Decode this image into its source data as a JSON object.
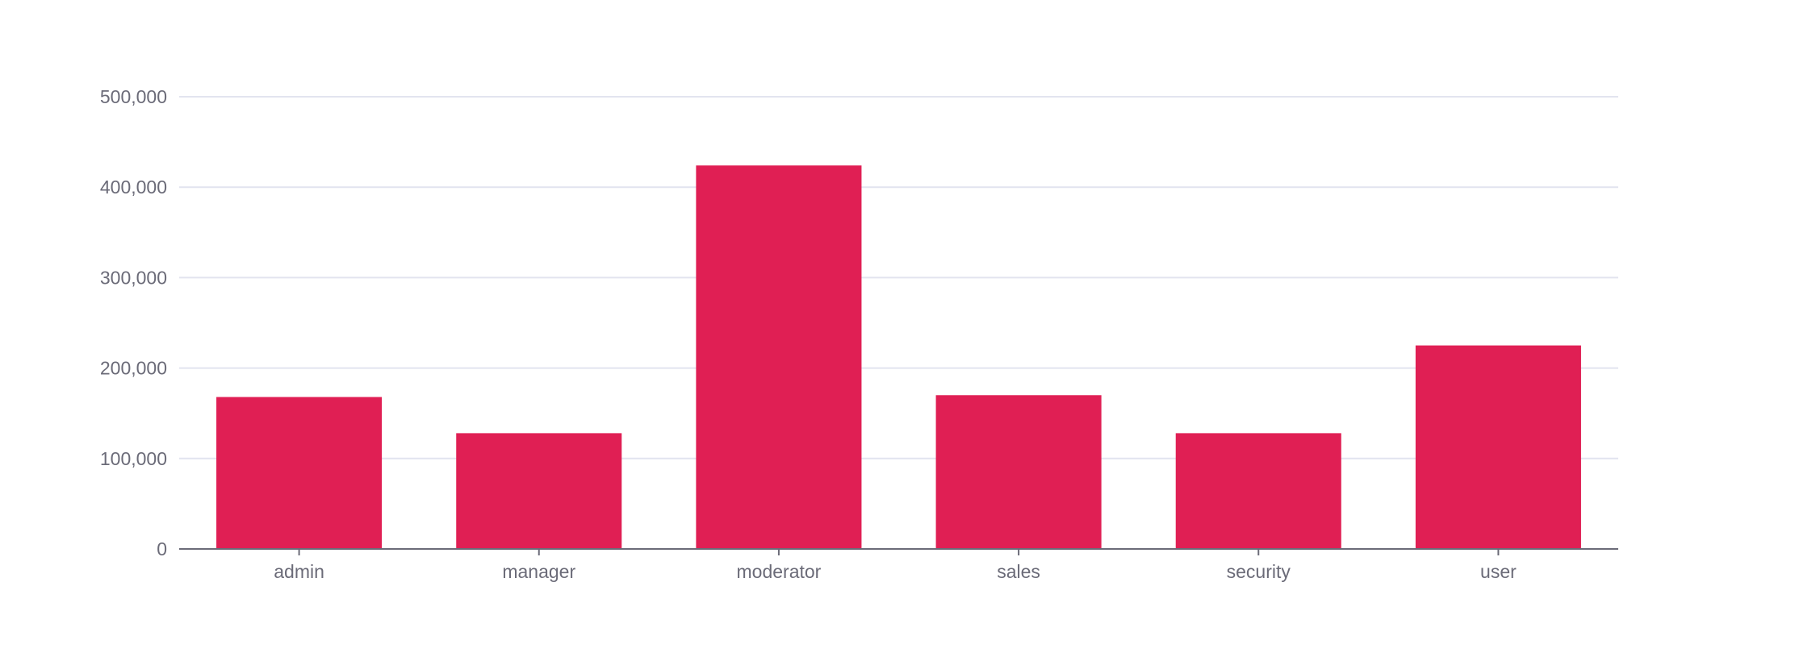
{
  "chart_data": {
    "type": "bar",
    "categories": [
      "admin",
      "manager",
      "moderator",
      "sales",
      "security",
      "user"
    ],
    "values": [
      168000,
      128000,
      424000,
      170000,
      128000,
      225000
    ],
    "title": "",
    "xlabel": "",
    "ylabel": "",
    "ylim": [
      0,
      500000
    ],
    "yticks": [
      0,
      100000,
      200000,
      300000,
      400000,
      500000
    ],
    "ytick_labels": [
      "0",
      "100,000",
      "200,000",
      "300,000",
      "400,000",
      "500,000"
    ],
    "grid": true,
    "legend": "none"
  },
  "colors": {
    "bar": "#e01f54",
    "grid": "#e2e4ef",
    "axis": "#6b6b78",
    "text": "#6b6b78"
  }
}
